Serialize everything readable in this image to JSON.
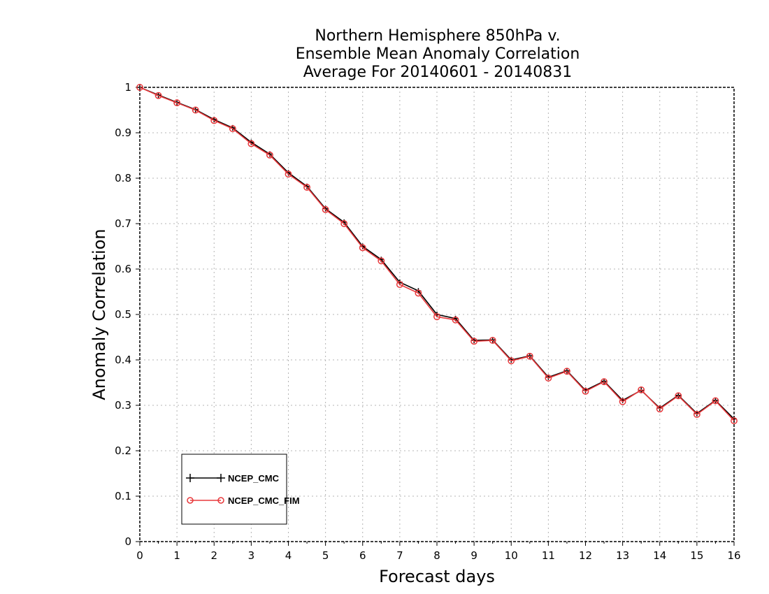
{
  "chart_data": {
    "type": "line",
    "title": [
      "Northern Hemisphere 850hPa v.",
      "Ensemble Mean Anomaly Correlation",
      "Average For 20140601 - 20140831"
    ],
    "xlabel": "Forecast days",
    "ylabel": "Anomaly Correlation",
    "xlim": [
      0,
      16
    ],
    "ylim": [
      0,
      1
    ],
    "x_ticks": [
      "0",
      "1",
      "2",
      "3",
      "4",
      "5",
      "6",
      "7",
      "8",
      "9",
      "10",
      "11",
      "12",
      "13",
      "14",
      "15",
      "16"
    ],
    "y_ticks": [
      "0",
      "0.1",
      "0.2",
      "0.3",
      "0.4",
      "0.5",
      "0.6",
      "0.7",
      "0.8",
      "0.9",
      "1"
    ],
    "grid": true,
    "legend_position": "bottom-left",
    "x": [
      0,
      0.5,
      1,
      1.5,
      2,
      2.5,
      3,
      3.5,
      4,
      4.5,
      5,
      5.5,
      6,
      6.5,
      7,
      7.5,
      8,
      8.5,
      9,
      9.5,
      10,
      10.5,
      11,
      11.5,
      12,
      12.5,
      13,
      13.5,
      14,
      14.5,
      15,
      15.5,
      16
    ],
    "series": [
      {
        "name": "NCEP_CMC",
        "color": "#000000",
        "marker": "plus",
        "values": [
          1.0,
          0.983,
          0.967,
          0.951,
          0.929,
          0.911,
          0.879,
          0.853,
          0.812,
          0.782,
          0.733,
          0.703,
          0.65,
          0.621,
          0.571,
          0.552,
          0.5,
          0.491,
          0.443,
          0.444,
          0.4,
          0.409,
          0.362,
          0.376,
          0.333,
          0.353,
          0.311,
          0.333,
          0.294,
          0.322,
          0.282,
          0.311,
          0.27
        ]
      },
      {
        "name": "NCEP_CMC_FIM",
        "color": "#e8383b",
        "marker": "circle",
        "values": [
          1.0,
          0.982,
          0.966,
          0.95,
          0.927,
          0.909,
          0.876,
          0.851,
          0.809,
          0.78,
          0.731,
          0.7,
          0.647,
          0.618,
          0.566,
          0.547,
          0.495,
          0.488,
          0.441,
          0.443,
          0.398,
          0.408,
          0.36,
          0.375,
          0.331,
          0.352,
          0.308,
          0.334,
          0.292,
          0.321,
          0.28,
          0.31,
          0.266
        ]
      }
    ]
  }
}
